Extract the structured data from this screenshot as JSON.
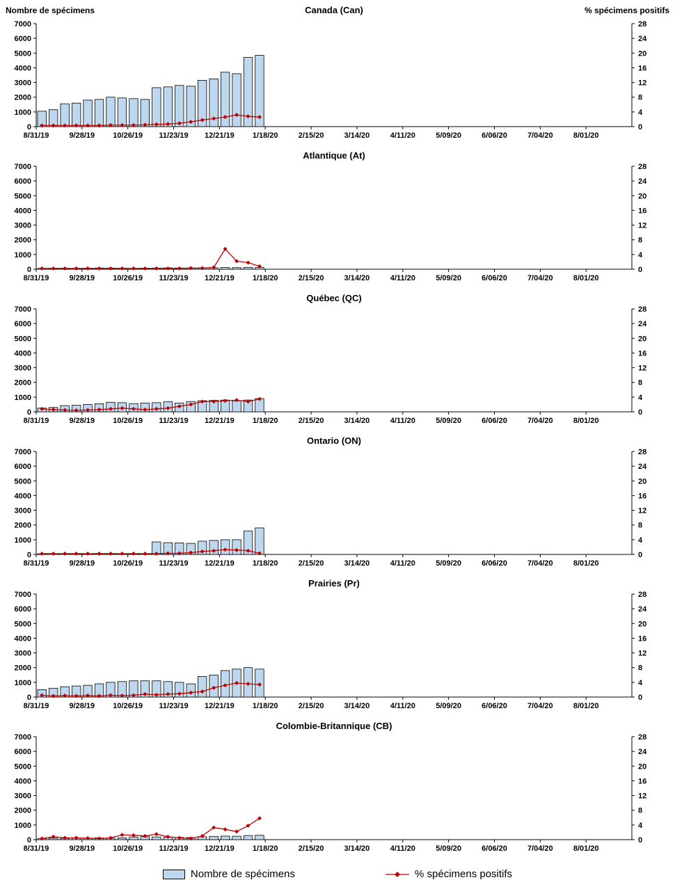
{
  "page": {
    "left_axis_title": "Nombre de spécimens",
    "right_axis_title": "% spécimens positifs"
  },
  "legend": {
    "bars": "Nombre de spécimens",
    "line": "% spécimens positifs"
  },
  "colors": {
    "bar_fill": "#BDD7EE",
    "bar_stroke": "#000000",
    "line": "#C00000"
  },
  "axes": {
    "left_max": 7000,
    "right_max": 28,
    "left_ticks": [
      0,
      1000,
      2000,
      3000,
      4000,
      5000,
      6000,
      7000
    ],
    "right_ticks": [
      0,
      4,
      8,
      12,
      16,
      20,
      24,
      28
    ],
    "total_weeks": 52,
    "x_tick_positions": [
      0,
      4,
      8,
      12,
      16,
      20,
      24,
      28,
      32,
      36,
      40,
      44,
      48
    ],
    "x_tick_labels": [
      "8/31/19",
      "9/28/19",
      "10/26/19",
      "11/23/19",
      "12/21/19",
      "1/18/20",
      "2/15/20",
      "3/14/20",
      "4/11/20",
      "5/09/20",
      "6/06/20",
      "7/04/20",
      "8/01/20"
    ]
  },
  "chart_data": [
    {
      "type": "bar+line",
      "title": "Canada (Can)",
      "x": [
        "8/31/19",
        "9/7/19",
        "9/14/19",
        "9/21/19",
        "9/28/19",
        "10/5/19",
        "10/12/19",
        "10/19/19",
        "10/26/19",
        "11/2/19",
        "11/9/19",
        "11/16/19",
        "11/23/19",
        "11/30/19",
        "12/7/19",
        "12/14/19",
        "12/21/19",
        "12/28/19",
        "1/4/20",
        "1/11/20"
      ],
      "series": [
        {
          "name": "Nombre de spécimens",
          "type": "bar",
          "axis": "left",
          "values": [
            1050,
            1150,
            1550,
            1600,
            1800,
            1850,
            2000,
            1950,
            1900,
            1850,
            2650,
            2700,
            2800,
            2750,
            3150,
            3250,
            3700,
            3600,
            4700,
            4850
          ]
        },
        {
          "name": "% spécimens positifs",
          "type": "line",
          "axis": "right",
          "values": [
            0.3,
            0.3,
            0.3,
            0.3,
            0.3,
            0.3,
            0.4,
            0.4,
            0.4,
            0.5,
            0.6,
            0.7,
            0.9,
            1.3,
            1.8,
            2.2,
            2.6,
            3.2,
            2.8,
            2.6
          ]
        }
      ]
    },
    {
      "type": "bar+line",
      "title": "Atlantique (At)",
      "x": [
        "8/31/19",
        "9/7/19",
        "9/14/19",
        "9/21/19",
        "9/28/19",
        "10/5/19",
        "10/12/19",
        "10/19/19",
        "10/26/19",
        "11/2/19",
        "11/9/19",
        "11/16/19",
        "11/23/19",
        "11/30/19",
        "12/7/19",
        "12/14/19",
        "12/21/19",
        "12/28/19",
        "1/4/20",
        "1/11/20"
      ],
      "series": [
        {
          "name": "Nombre de spécimens",
          "type": "bar",
          "axis": "left",
          "values": [
            60,
            70,
            70,
            60,
            70,
            80,
            80,
            70,
            60,
            70,
            80,
            90,
            80,
            90,
            100,
            100,
            120,
            110,
            130,
            120
          ]
        },
        {
          "name": "% spécimens positifs",
          "type": "line",
          "axis": "right",
          "values": [
            0.2,
            0.2,
            0.2,
            0.2,
            0.2,
            0.2,
            0.2,
            0.2,
            0.2,
            0.2,
            0.2,
            0.2,
            0.2,
            0.3,
            0.3,
            0.5,
            5.5,
            2.2,
            1.8,
            0.8
          ]
        }
      ]
    },
    {
      "type": "bar+line",
      "title": "Québec (QC)",
      "x": [
        "8/31/19",
        "9/7/19",
        "9/14/19",
        "9/21/19",
        "9/28/19",
        "10/5/19",
        "10/12/19",
        "10/19/19",
        "10/26/19",
        "11/2/19",
        "11/9/19",
        "11/16/19",
        "11/23/19",
        "11/30/19",
        "12/7/19",
        "12/14/19",
        "12/21/19",
        "12/28/19",
        "1/4/20",
        "1/11/20"
      ],
      "series": [
        {
          "name": "Nombre de spécimens",
          "type": "bar",
          "axis": "left",
          "values": [
            250,
            300,
            420,
            450,
            500,
            550,
            650,
            620,
            560,
            600,
            620,
            680,
            600,
            700,
            750,
            780,
            800,
            750,
            800,
            900
          ]
        },
        {
          "name": "% spécimens positifs",
          "type": "line",
          "axis": "right",
          "values": [
            0.8,
            0.6,
            0.5,
            0.4,
            0.5,
            0.6,
            0.8,
            1.0,
            0.8,
            0.6,
            0.8,
            1.0,
            1.5,
            2.0,
            2.8,
            2.8,
            3.0,
            3.2,
            2.8,
            3.5
          ]
        }
      ]
    },
    {
      "type": "bar+line",
      "title": "Ontario (ON)",
      "x": [
        "8/31/19",
        "9/7/19",
        "9/14/19",
        "9/21/19",
        "9/28/19",
        "10/5/19",
        "10/12/19",
        "10/19/19",
        "10/26/19",
        "11/2/19",
        "11/9/19",
        "11/16/19",
        "11/23/19",
        "11/30/19",
        "12/7/19",
        "12/14/19",
        "12/21/19",
        "12/28/19",
        "1/4/20",
        "1/11/20"
      ],
      "series": [
        {
          "name": "Nombre de spécimens",
          "type": "bar",
          "axis": "left",
          "values": [
            40,
            50,
            50,
            40,
            50,
            60,
            60,
            50,
            40,
            50,
            850,
            800,
            780,
            750,
            900,
            950,
            1000,
            1000,
            1600,
            1800
          ]
        },
        {
          "name": "% spécimens positifs",
          "type": "line",
          "axis": "right",
          "values": [
            0.2,
            0.2,
            0.2,
            0.2,
            0.2,
            0.2,
            0.2,
            0.2,
            0.2,
            0.2,
            0.2,
            0.3,
            0.3,
            0.5,
            0.8,
            1.0,
            1.3,
            1.2,
            1.0,
            0.3
          ]
        }
      ]
    },
    {
      "type": "bar+line",
      "title": "Prairies (Pr)",
      "x": [
        "8/31/19",
        "9/7/19",
        "9/14/19",
        "9/21/19",
        "9/28/19",
        "10/5/19",
        "10/12/19",
        "10/19/19",
        "10/26/19",
        "11/2/19",
        "11/9/19",
        "11/16/19",
        "11/23/19",
        "11/30/19",
        "12/7/19",
        "12/14/19",
        "12/21/19",
        "12/28/19",
        "1/4/20",
        "1/11/20"
      ],
      "series": [
        {
          "name": "Nombre de spécimens",
          "type": "bar",
          "axis": "left",
          "values": [
            500,
            600,
            700,
            750,
            800,
            900,
            1000,
            1050,
            1100,
            1100,
            1100,
            1050,
            1000,
            900,
            1400,
            1500,
            1800,
            1900,
            2000,
            1900
          ]
        },
        {
          "name": "% spécimens positifs",
          "type": "line",
          "axis": "right",
          "values": [
            0.5,
            0.3,
            0.4,
            0.3,
            0.4,
            0.3,
            0.5,
            0.4,
            0.5,
            0.8,
            0.6,
            0.8,
            0.9,
            1.2,
            1.5,
            2.5,
            3.2,
            3.8,
            3.6,
            3.4
          ]
        }
      ]
    },
    {
      "type": "bar+line",
      "title": "Colombie-Britannique (CB)",
      "x": [
        "8/31/19",
        "9/7/19",
        "9/14/19",
        "9/21/19",
        "9/28/19",
        "10/5/19",
        "10/12/19",
        "10/19/19",
        "10/26/19",
        "11/2/19",
        "11/9/19",
        "11/16/19",
        "11/23/19",
        "11/30/19",
        "12/7/19",
        "12/14/19",
        "12/21/19",
        "12/28/19",
        "1/4/20",
        "1/11/20"
      ],
      "series": [
        {
          "name": "Nombre de spécimens",
          "type": "bar",
          "axis": "left",
          "values": [
            80,
            100,
            90,
            100,
            110,
            120,
            100,
            120,
            180,
            200,
            180,
            160,
            150,
            140,
            200,
            220,
            240,
            230,
            280,
            300
          ]
        },
        {
          "name": "% spécimens positifs",
          "type": "line",
          "axis": "right",
          "values": [
            0.3,
            0.8,
            0.5,
            0.5,
            0.4,
            0.3,
            0.5,
            1.3,
            1.2,
            1.0,
            1.5,
            0.8,
            0.5,
            0.3,
            1.0,
            3.3,
            2.8,
            2.2,
            3.8,
            5.8
          ]
        }
      ]
    }
  ]
}
